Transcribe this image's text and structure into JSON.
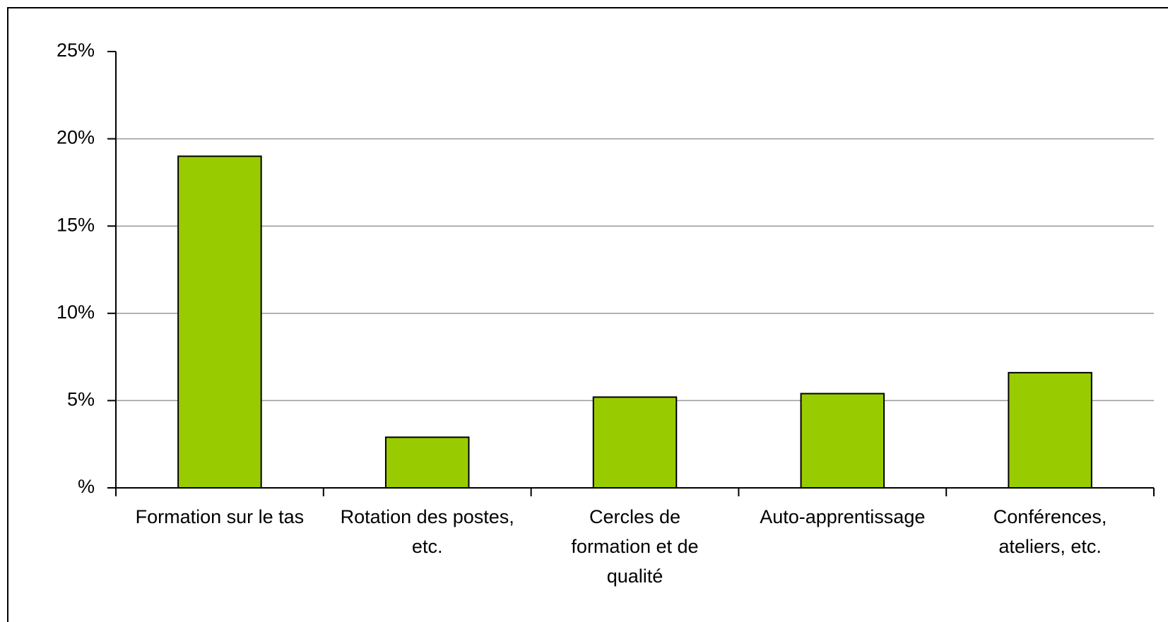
{
  "chart_data": {
    "type": "bar",
    "categories": [
      "Formation sur le tas",
      "Rotation des postes, etc.",
      "Cercles de formation et de qualité",
      "Auto-apprentissage",
      "Conférences, ateliers, etc."
    ],
    "values": [
      19,
      2.9,
      5.2,
      5.4,
      6.6
    ],
    "color": "#99cc00",
    "ylim": [
      0,
      25
    ],
    "yticks": [
      {
        "value": 0,
        "label": "%"
      },
      {
        "value": 5,
        "label": "5%"
      },
      {
        "value": 10,
        "label": "10%"
      },
      {
        "value": 15,
        "label": "15%"
      },
      {
        "value": 20,
        "label": "20%"
      },
      {
        "value": 25,
        "label": "25%"
      }
    ],
    "grid": true
  }
}
